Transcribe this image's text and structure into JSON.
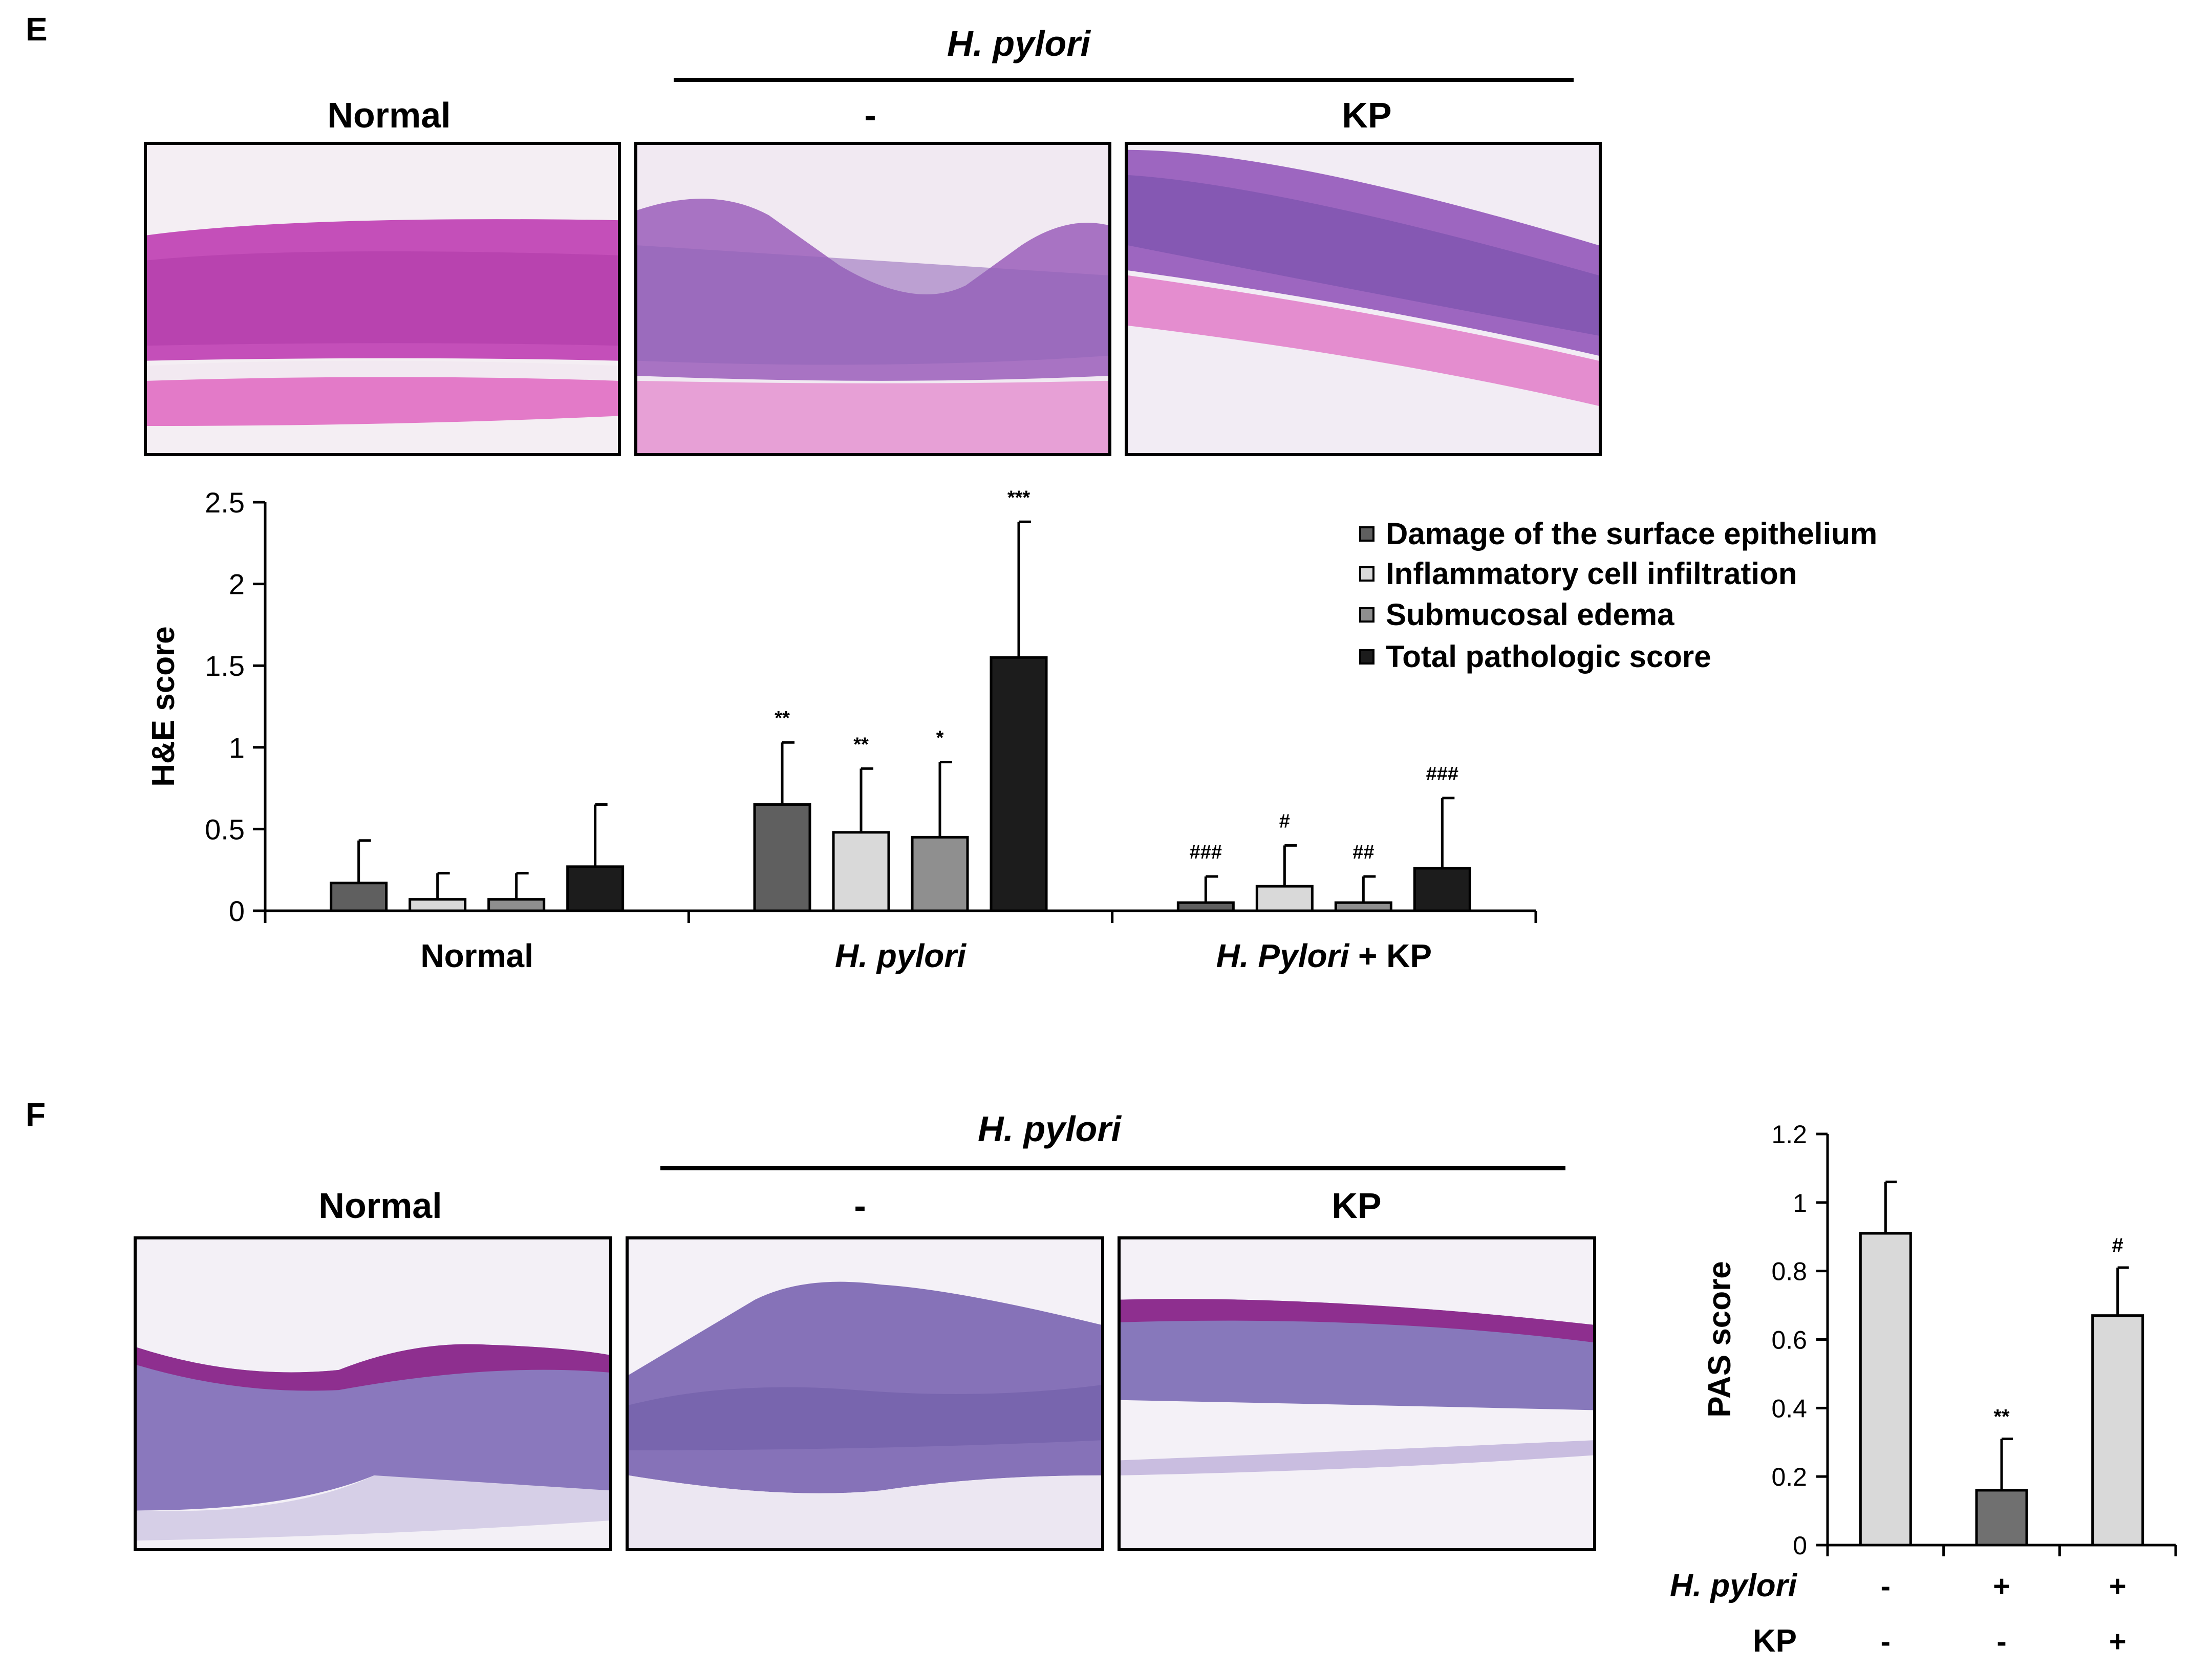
{
  "panelE": {
    "letter": "E",
    "h_pylori_header": "H. pylori",
    "image_labels": [
      "Normal",
      "-",
      "KP"
    ]
  },
  "panelF": {
    "letter": "F",
    "h_pylori_header": "H. pylori",
    "image_labels": [
      "Normal",
      "-",
      "KP"
    ]
  },
  "chart_data": [
    {
      "type": "bar",
      "title": "",
      "ylabel": "H&E score",
      "xlabel": "",
      "ylim": [
        0,
        2.5
      ],
      "yticks": [
        "0",
        "0.5",
        "1",
        "1.5",
        "2",
        "2.5"
      ],
      "categories": [
        "Normal",
        "H. pylori",
        "H. Pylori + KP"
      ],
      "category_parts": [
        {
          "italic": "",
          "plain": "Normal"
        },
        {
          "italic": "H. pylori",
          "plain": ""
        },
        {
          "italic": "H. Pylori",
          "plain": " + KP"
        }
      ],
      "legend_position": "top-right",
      "series": [
        {
          "name": "Damage of the surface epithelium",
          "color": "#5f5f5f",
          "values": [
            0.17,
            0.65,
            0.05
          ],
          "errors": [
            0.26,
            0.38,
            0.16
          ],
          "sig": [
            "",
            "**",
            "###"
          ]
        },
        {
          "name": "Inflammatory cell infiltration",
          "color": "#d9d9d9",
          "values": [
            0.07,
            0.48,
            0.15
          ],
          "errors": [
            0.16,
            0.39,
            0.25
          ],
          "sig": [
            "",
            "**",
            "#"
          ]
        },
        {
          "name": "Submucosal edema",
          "color": "#8f8f8f",
          "values": [
            0.07,
            0.45,
            0.05
          ],
          "errors": [
            0.16,
            0.46,
            0.16
          ],
          "sig": [
            "",
            "*",
            "##"
          ]
        },
        {
          "name": "Total pathologic score",
          "color": "#1c1c1c",
          "values": [
            0.27,
            1.55,
            0.26
          ],
          "errors": [
            0.38,
            0.83,
            0.43
          ],
          "sig": [
            "",
            "***",
            "###"
          ]
        }
      ]
    },
    {
      "type": "bar",
      "title": "",
      "ylabel": "PAS score",
      "xlabel": "",
      "ylim": [
        0,
        1.2
      ],
      "yticks": [
        "0",
        "0.2",
        "0.4",
        "0.6",
        "0.8",
        "1",
        "1.2"
      ],
      "categories": [
        "-/-",
        "+/-",
        "+/+"
      ],
      "values": [
        0.91,
        0.16,
        0.67
      ],
      "errors": [
        0.15,
        0.15,
        0.14
      ],
      "colors": [
        "#d9d9d9",
        "#707070",
        "#d9d9d9"
      ],
      "sig": [
        "",
        "**",
        "#"
      ],
      "condition_rows": [
        {
          "label": "H. pylori",
          "italic": true,
          "values": [
            "-",
            "+",
            "+"
          ]
        },
        {
          "label": "KP",
          "italic": false,
          "values": [
            "-",
            "-",
            "+"
          ]
        }
      ]
    }
  ]
}
